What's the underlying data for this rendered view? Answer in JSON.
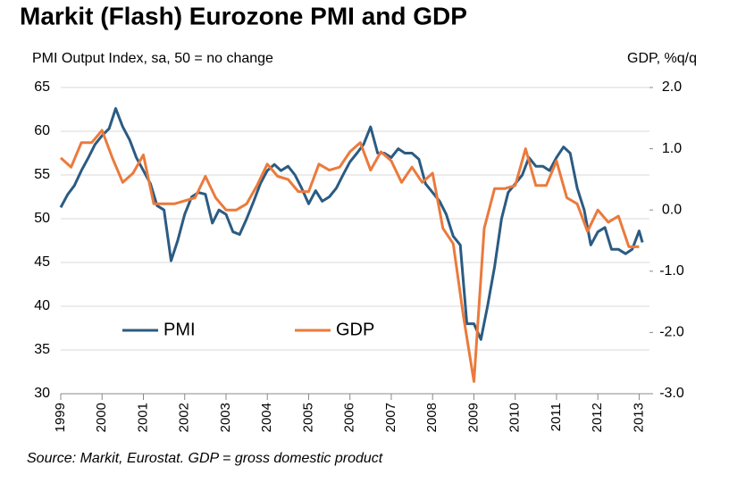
{
  "chart_data": {
    "type": "line",
    "title": "Markit (Flash) Eurozone PMI and GDP",
    "y_label": "PMI Output Index, sa, 50 = no change",
    "y2_label": "GDP, %q/q",
    "source": "Source: Markit, Eurostat. GDP = gross domestic product",
    "xlim": [
      1999,
      2013.25
    ],
    "xticks": [
      1999,
      2000,
      2001,
      2002,
      2003,
      2004,
      2005,
      2006,
      2007,
      2008,
      2009,
      2010,
      2011,
      2012,
      2013
    ],
    "ylim": [
      30,
      65
    ],
    "yticks": [
      30,
      35,
      40,
      45,
      50,
      55,
      60,
      65
    ],
    "y2lim": [
      -3,
      2
    ],
    "y2ticks": [
      {
        "value": -3,
        "label": "-3.0"
      },
      {
        "value": -2,
        "label": "-2.0"
      },
      {
        "value": -1,
        "label": "-1.0"
      },
      {
        "value": 0,
        "label": "0.0"
      },
      {
        "value": 1,
        "label": "1.0"
      },
      {
        "value": 2,
        "label": "2.0"
      }
    ],
    "grid": true,
    "series": [
      {
        "name": "PMI",
        "color": "#2b5b82",
        "axis": "y",
        "x": [
          1999.0,
          1999.17,
          1999.33,
          1999.5,
          1999.67,
          1999.83,
          2000.0,
          2000.17,
          2000.33,
          2000.5,
          2000.67,
          2000.83,
          2001.0,
          2001.17,
          2001.33,
          2001.5,
          2001.67,
          2001.83,
          2002.0,
          2002.17,
          2002.33,
          2002.5,
          2002.67,
          2002.83,
          2003.0,
          2003.17,
          2003.33,
          2003.5,
          2003.67,
          2003.83,
          2004.0,
          2004.17,
          2004.33,
          2004.5,
          2004.67,
          2004.83,
          2005.0,
          2005.17,
          2005.33,
          2005.5,
          2005.67,
          2005.83,
          2006.0,
          2006.17,
          2006.33,
          2006.5,
          2006.67,
          2006.83,
          2007.0,
          2007.17,
          2007.33,
          2007.5,
          2007.67,
          2007.83,
          2008.0,
          2008.17,
          2008.33,
          2008.5,
          2008.67,
          2008.83,
          2009.0,
          2009.17,
          2009.33,
          2009.5,
          2009.67,
          2009.83,
          2010.0,
          2010.17,
          2010.33,
          2010.5,
          2010.67,
          2010.83,
          2011.0,
          2011.17,
          2011.33,
          2011.5,
          2011.67,
          2011.83,
          2012.0,
          2012.17,
          2012.33,
          2012.5,
          2012.67,
          2012.83,
          2013.0,
          2013.08
        ],
        "values": [
          51.3,
          52.8,
          53.8,
          55.5,
          57.0,
          58.5,
          59.5,
          60.3,
          62.6,
          60.5,
          59.0,
          57.0,
          55.5,
          54.0,
          51.5,
          51.0,
          45.2,
          47.5,
          50.5,
          52.5,
          53.0,
          52.8,
          49.5,
          51.0,
          50.5,
          48.5,
          48.2,
          50.0,
          52.0,
          54.0,
          55.5,
          56.2,
          55.5,
          56.0,
          55.0,
          53.5,
          51.7,
          53.2,
          52.0,
          52.5,
          53.5,
          55.0,
          56.5,
          57.5,
          58.5,
          60.5,
          57.5,
          57.5,
          57.0,
          58.0,
          57.5,
          57.5,
          56.8,
          54.0,
          53.0,
          52.0,
          50.5,
          48.0,
          47.0,
          38.0,
          38.0,
          36.2,
          40.0,
          44.5,
          50.0,
          53.0,
          54.0,
          55.0,
          57.0,
          56.0,
          56.0,
          55.5,
          57.0,
          58.2,
          57.5,
          53.5,
          51.0,
          47.0,
          48.5,
          49.0,
          46.5,
          46.5,
          46.0,
          46.5,
          48.6,
          47.3
        ]
      },
      {
        "name": "GDP",
        "color": "#eb7a3c",
        "axis": "y2",
        "x": [
          1999.0,
          1999.25,
          1999.5,
          1999.75,
          2000.0,
          2000.25,
          2000.5,
          2000.75,
          2001.0,
          2001.25,
          2001.5,
          2001.75,
          2002.0,
          2002.25,
          2002.5,
          2002.75,
          2003.0,
          2003.25,
          2003.5,
          2003.75,
          2004.0,
          2004.25,
          2004.5,
          2004.75,
          2005.0,
          2005.25,
          2005.5,
          2005.75,
          2006.0,
          2006.25,
          2006.5,
          2006.75,
          2007.0,
          2007.25,
          2007.5,
          2007.75,
          2008.0,
          2008.25,
          2008.5,
          2008.75,
          2009.0,
          2009.25,
          2009.5,
          2009.75,
          2010.0,
          2010.25,
          2010.5,
          2010.75,
          2011.0,
          2011.25,
          2011.5,
          2011.75,
          2012.0,
          2012.25,
          2012.5,
          2012.75,
          2013.0
        ],
        "values": [
          0.85,
          0.7,
          1.1,
          1.1,
          1.3,
          0.85,
          0.45,
          0.6,
          0.9,
          0.1,
          0.1,
          0.1,
          0.15,
          0.2,
          0.55,
          0.2,
          0.0,
          0.0,
          0.1,
          0.4,
          0.75,
          0.55,
          0.5,
          0.3,
          0.3,
          0.75,
          0.65,
          0.7,
          0.95,
          1.1,
          0.65,
          0.95,
          0.8,
          0.45,
          0.7,
          0.45,
          0.6,
          -0.3,
          -0.55,
          -1.75,
          -2.8,
          -0.3,
          0.35,
          0.35,
          0.4,
          1.0,
          0.4,
          0.4,
          0.8,
          0.2,
          0.1,
          -0.35,
          0.0,
          -0.2,
          -0.1,
          -0.6,
          -0.6
        ]
      }
    ]
  }
}
